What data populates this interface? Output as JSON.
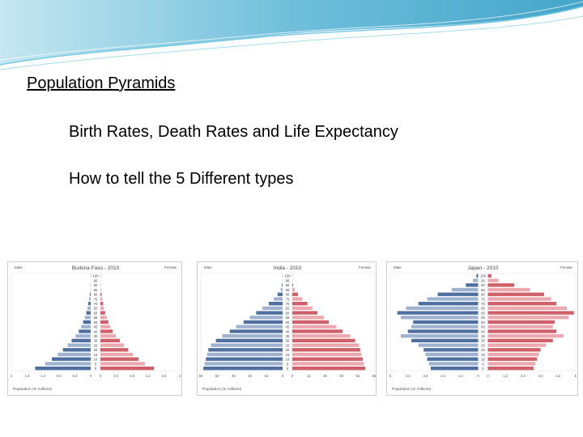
{
  "slide": {
    "title": "Population Pyramids",
    "bullets": [
      "Birth Rates, Death Rates and Life Expectancy",
      "How to tell the 5 Different types"
    ]
  },
  "colors": {
    "male": "#4f6fa0",
    "male_light": "#9fb3d1",
    "female": "#cf5f68",
    "female_light": "#eca8ae",
    "wave": "#5fb8d6"
  },
  "chart_data": [
    {
      "type": "bar",
      "title": "Burkina Faso - 2010",
      "male_label": "Male",
      "female_label": "Female",
      "xlabel": "Population (in millions)",
      "categories": [
        "0",
        "5",
        "10",
        "15",
        "20",
        "25",
        "30",
        "35",
        "40",
        "45",
        "50",
        "55",
        "60",
        "65",
        "70",
        "75",
        "80",
        "85",
        "90",
        "95",
        "100"
      ],
      "male": [
        1.4,
        1.15,
        0.98,
        0.83,
        0.7,
        0.58,
        0.48,
        0.38,
        0.3,
        0.24,
        0.19,
        0.15,
        0.11,
        0.08,
        0.06,
        0.04,
        0.02,
        0.01,
        0.005,
        0.002,
        0.001
      ],
      "female": [
        1.35,
        1.12,
        0.96,
        0.82,
        0.7,
        0.59,
        0.49,
        0.39,
        0.31,
        0.25,
        0.2,
        0.16,
        0.12,
        0.09,
        0.07,
        0.05,
        0.03,
        0.015,
        0.006,
        0.002,
        0.001
      ],
      "xlim": 2.0,
      "tick_labels_left": [
        "2",
        "1.6",
        "1.2",
        "0.8",
        "0.4",
        "0"
      ],
      "tick_labels_right": [
        "0",
        "0.4",
        "0.8",
        "1.2",
        "1.6",
        "2"
      ]
    },
    {
      "type": "bar",
      "title": "India - 2010",
      "male_label": "Male",
      "female_label": "Female",
      "xlabel": "Population (in millions)",
      "categories": [
        "0",
        "5",
        "10",
        "15",
        "20",
        "25",
        "30",
        "35",
        "40",
        "45",
        "50",
        "55",
        "60",
        "65",
        "70",
        "75",
        "80",
        "85",
        "90",
        "95",
        "100"
      ],
      "male": [
        63,
        62,
        61,
        60,
        59,
        57,
        53,
        48,
        42,
        37,
        31,
        26,
        21,
        16,
        11,
        7,
        4,
        1.5,
        0.5,
        0.1,
        0.05
      ],
      "female": [
        58,
        57,
        56,
        55,
        54,
        53,
        50,
        46,
        40,
        35,
        29,
        25,
        20,
        16,
        12,
        8,
        4.5,
        2,
        0.6,
        0.1,
        0.05
      ],
      "xlim": 65,
      "tick_labels_left": [
        "65",
        "52",
        "39",
        "26",
        "13",
        "0"
      ],
      "tick_labels_right": [
        "0",
        "13",
        "26",
        "39",
        "52",
        "65"
      ]
    },
    {
      "type": "bar",
      "title": "Japan - 2010",
      "male_label": "Male",
      "female_label": "Female",
      "xlabel": "Population (in millions)",
      "categories": [
        "0",
        "5",
        "10",
        "15",
        "20",
        "25",
        "30",
        "35",
        "40",
        "45",
        "50",
        "55",
        "60",
        "65",
        "70",
        "75",
        "80",
        "85",
        "90",
        "95",
        "100"
      ],
      "male": [
        2.7,
        2.8,
        2.9,
        3.0,
        3.1,
        3.4,
        3.8,
        4.4,
        4.0,
        3.8,
        3.7,
        4.4,
        4.6,
        4.1,
        3.4,
        2.9,
        2.3,
        1.5,
        0.7,
        0.3,
        0.1
      ],
      "female": [
        2.6,
        2.7,
        2.8,
        2.9,
        3.0,
        3.3,
        3.7,
        4.3,
        3.9,
        3.7,
        3.8,
        4.6,
        4.9,
        4.5,
        3.9,
        3.6,
        3.2,
        2.4,
        1.5,
        0.6,
        0.2
      ],
      "xlim": 5.0,
      "tick_labels_left": [
        "5",
        "4.2",
        "3.6",
        "2.4",
        "1.2",
        "0"
      ],
      "tick_labels_right": [
        "0",
        "1.2",
        "2.4",
        "3.6",
        "4.2",
        "5"
      ]
    }
  ]
}
